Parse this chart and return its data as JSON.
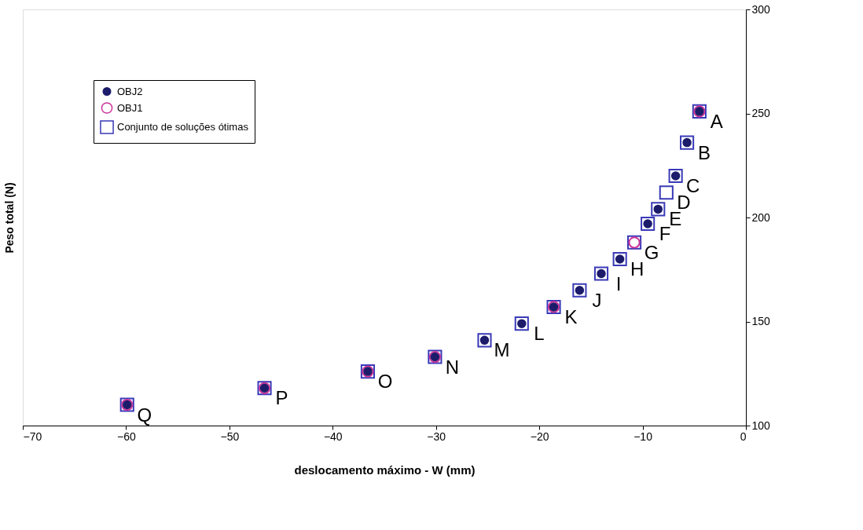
{
  "chart_data": {
    "type": "scatter",
    "xlabel": "deslocamento máximo - W (mm)",
    "ylabel": "Peso total (N)",
    "xlim": [
      -70,
      0
    ],
    "xticks": [
      -70,
      -60,
      -50,
      -40,
      -30,
      -20,
      -10,
      0
    ],
    "ylim": [
      100,
      300
    ],
    "yticks": [
      100,
      150,
      200,
      250,
      300
    ],
    "grid": false,
    "legend": "top left",
    "series": [
      {
        "name": "OBJ2",
        "color": "#1c1c6b",
        "marker": "circle",
        "x": [
          -4.5,
          -5.7,
          -6.8,
          -8.5,
          -9.5,
          -12.2,
          -14.0,
          -16.1,
          -18.6,
          -21.7,
          -25.3,
          -30.1,
          -36.6,
          -46.6,
          -59.9
        ],
        "values": [
          251,
          236,
          220,
          204,
          197,
          180,
          173,
          165,
          157,
          149,
          141,
          133,
          126,
          118,
          110
        ]
      },
      {
        "name": "OBJ1",
        "color": "#cc3399",
        "marker": "circle",
        "x": [
          -4.5,
          -10.8,
          -18.6,
          -30.1,
          -36.6,
          -46.6,
          -59.9
        ],
        "values": [
          251,
          188,
          157,
          133,
          126,
          118,
          110
        ]
      },
      {
        "name": "Conjunto de soluções ótimas",
        "color": "#3a3ab8",
        "marker": "square",
        "x": [
          -4.5,
          -5.7,
          -6.8,
          -7.7,
          -8.5,
          -9.5,
          -10.8,
          -12.2,
          -14.0,
          -16.1,
          -18.6,
          -21.7,
          -25.3,
          -30.1,
          -36.6,
          -46.6,
          -59.9
        ],
        "values": [
          251,
          236,
          220,
          212,
          204,
          197,
          188,
          180,
          173,
          165,
          157,
          149,
          141,
          133,
          126,
          118,
          110
        ]
      }
    ],
    "annotations": [
      {
        "text": "A",
        "x": -4.5,
        "y": 251
      },
      {
        "text": "B",
        "x": -5.7,
        "y": 236
      },
      {
        "text": "C",
        "x": -6.8,
        "y": 220
      },
      {
        "text": "D",
        "x": -7.7,
        "y": 212
      },
      {
        "text": "E",
        "x": -8.5,
        "y": 204
      },
      {
        "text": "F",
        "x": -9.5,
        "y": 197
      },
      {
        "text": "G",
        "x": -10.8,
        "y": 188
      },
      {
        "text": "H",
        "x": -12.2,
        "y": 180
      },
      {
        "text": "I",
        "x": -14.0,
        "y": 173
      },
      {
        "text": "J",
        "x": -16.1,
        "y": 165
      },
      {
        "text": "K",
        "x": -18.6,
        "y": 157
      },
      {
        "text": "L",
        "x": -21.7,
        "y": 149
      },
      {
        "text": "M",
        "x": -25.3,
        "y": 141
      },
      {
        "text": "N",
        "x": -30.1,
        "y": 133
      },
      {
        "text": "O",
        "x": -36.6,
        "y": 126
      },
      {
        "text": "P",
        "x": -46.6,
        "y": 118
      },
      {
        "text": "Q",
        "x": -59.9,
        "y": 110
      }
    ]
  }
}
